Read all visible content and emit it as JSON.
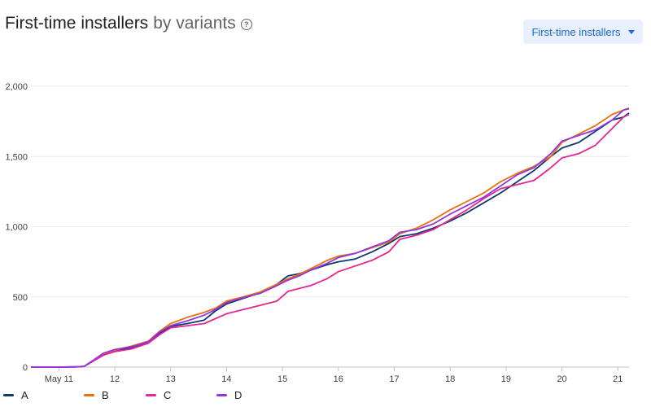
{
  "header": {
    "title": "First-time installers",
    "subtitle": "by variants",
    "help_icon": "help-circle-icon"
  },
  "metric_selector": {
    "label": "First-time installers",
    "icon": "dropdown-caret-icon"
  },
  "chart_data": {
    "type": "line",
    "title": "First-time installers by variants",
    "xlabel": "",
    "ylabel": "",
    "x_range": [
      10.5,
      21.2
    ],
    "x_ticks": [
      {
        "value": 11,
        "label": "May 11"
      },
      {
        "value": 12,
        "label": "12"
      },
      {
        "value": 13,
        "label": "13"
      },
      {
        "value": 14,
        "label": "14"
      },
      {
        "value": 15,
        "label": "15"
      },
      {
        "value": 16,
        "label": "16"
      },
      {
        "value": 17,
        "label": "17"
      },
      {
        "value": 18,
        "label": "18"
      },
      {
        "value": 19,
        "label": "19"
      },
      {
        "value": 20,
        "label": "20"
      },
      {
        "value": 21,
        "label": "21"
      }
    ],
    "ylim": [
      0,
      2000
    ],
    "y_ticks": [
      {
        "value": 0,
        "label": "0"
      },
      {
        "value": 500,
        "label": "500"
      },
      {
        "value": 1000,
        "label": "1,000"
      },
      {
        "value": 1500,
        "label": "1,500"
      },
      {
        "value": 2000,
        "label": "2,000"
      }
    ],
    "grid": true,
    "legend_position": "bottom-left",
    "series": [
      {
        "name": "A",
        "color": "#0d3a6e",
        "points": [
          [
            10.5,
            0
          ],
          [
            11.0,
            0
          ],
          [
            11.3,
            2
          ],
          [
            11.45,
            5
          ],
          [
            11.6,
            40
          ],
          [
            11.8,
            90
          ],
          [
            12.0,
            115
          ],
          [
            12.3,
            140
          ],
          [
            12.6,
            175
          ],
          [
            12.8,
            240
          ],
          [
            13.0,
            290
          ],
          [
            13.3,
            310
          ],
          [
            13.6,
            335
          ],
          [
            13.8,
            400
          ],
          [
            14.0,
            450
          ],
          [
            14.3,
            490
          ],
          [
            14.6,
            530
          ],
          [
            14.9,
            590
          ],
          [
            15.1,
            650
          ],
          [
            15.3,
            665
          ],
          [
            15.5,
            690
          ],
          [
            15.8,
            730
          ],
          [
            16.0,
            750
          ],
          [
            16.3,
            770
          ],
          [
            16.6,
            820
          ],
          [
            16.9,
            880
          ],
          [
            17.1,
            930
          ],
          [
            17.4,
            950
          ],
          [
            17.7,
            990
          ],
          [
            18.0,
            1040
          ],
          [
            18.3,
            1100
          ],
          [
            18.6,
            1170
          ],
          [
            18.9,
            1240
          ],
          [
            19.2,
            1320
          ],
          [
            19.5,
            1400
          ],
          [
            19.8,
            1500
          ],
          [
            20.0,
            1560
          ],
          [
            20.3,
            1600
          ],
          [
            20.6,
            1680
          ],
          [
            20.9,
            1760
          ],
          [
            21.1,
            1780
          ],
          [
            21.2,
            1810
          ]
        ]
      },
      {
        "name": "B",
        "color": "#e8710a",
        "points": [
          [
            10.5,
            0
          ],
          [
            11.0,
            0
          ],
          [
            11.3,
            2
          ],
          [
            11.45,
            5
          ],
          [
            11.6,
            40
          ],
          [
            11.8,
            95
          ],
          [
            12.0,
            120
          ],
          [
            12.3,
            150
          ],
          [
            12.6,
            185
          ],
          [
            12.8,
            255
          ],
          [
            13.0,
            310
          ],
          [
            13.3,
            355
          ],
          [
            13.6,
            390
          ],
          [
            13.8,
            420
          ],
          [
            14.0,
            470
          ],
          [
            14.3,
            500
          ],
          [
            14.6,
            535
          ],
          [
            14.9,
            590
          ],
          [
            15.1,
            630
          ],
          [
            15.3,
            660
          ],
          [
            15.5,
            700
          ],
          [
            15.8,
            760
          ],
          [
            16.0,
            790
          ],
          [
            16.3,
            810
          ],
          [
            16.6,
            850
          ],
          [
            16.9,
            890
          ],
          [
            17.1,
            950
          ],
          [
            17.4,
            990
          ],
          [
            17.7,
            1050
          ],
          [
            18.0,
            1120
          ],
          [
            18.3,
            1180
          ],
          [
            18.6,
            1240
          ],
          [
            18.9,
            1320
          ],
          [
            19.2,
            1380
          ],
          [
            19.5,
            1430
          ],
          [
            19.8,
            1500
          ],
          [
            20.0,
            1600
          ],
          [
            20.3,
            1660
          ],
          [
            20.6,
            1720
          ],
          [
            20.9,
            1800
          ],
          [
            21.1,
            1830
          ],
          [
            21.2,
            1845
          ]
        ]
      },
      {
        "name": "C",
        "color": "#e52592",
        "points": [
          [
            10.5,
            0
          ],
          [
            11.0,
            0
          ],
          [
            11.3,
            2
          ],
          [
            11.45,
            5
          ],
          [
            11.6,
            40
          ],
          [
            11.8,
            85
          ],
          [
            12.0,
            110
          ],
          [
            12.3,
            130
          ],
          [
            12.6,
            170
          ],
          [
            12.8,
            230
          ],
          [
            13.0,
            280
          ],
          [
            13.3,
            295
          ],
          [
            13.6,
            310
          ],
          [
            13.8,
            345
          ],
          [
            14.0,
            380
          ],
          [
            14.3,
            410
          ],
          [
            14.6,
            440
          ],
          [
            14.9,
            470
          ],
          [
            15.1,
            540
          ],
          [
            15.3,
            560
          ],
          [
            15.5,
            580
          ],
          [
            15.8,
            630
          ],
          [
            16.0,
            680
          ],
          [
            16.3,
            720
          ],
          [
            16.6,
            760
          ],
          [
            16.9,
            820
          ],
          [
            17.1,
            910
          ],
          [
            17.4,
            940
          ],
          [
            17.7,
            980
          ],
          [
            18.0,
            1050
          ],
          [
            18.3,
            1120
          ],
          [
            18.6,
            1200
          ],
          [
            18.9,
            1270
          ],
          [
            19.2,
            1300
          ],
          [
            19.5,
            1330
          ],
          [
            19.8,
            1420
          ],
          [
            20.0,
            1490
          ],
          [
            20.3,
            1520
          ],
          [
            20.6,
            1580
          ],
          [
            20.9,
            1700
          ],
          [
            21.1,
            1780
          ],
          [
            21.2,
            1800
          ]
        ]
      },
      {
        "name": "D",
        "color": "#9334e6",
        "points": [
          [
            10.5,
            0
          ],
          [
            11.0,
            0
          ],
          [
            11.3,
            2
          ],
          [
            11.45,
            5
          ],
          [
            11.6,
            45
          ],
          [
            11.8,
            100
          ],
          [
            12.0,
            125
          ],
          [
            12.3,
            145
          ],
          [
            12.6,
            180
          ],
          [
            12.8,
            250
          ],
          [
            13.0,
            295
          ],
          [
            13.3,
            330
          ],
          [
            13.6,
            370
          ],
          [
            13.8,
            410
          ],
          [
            14.0,
            460
          ],
          [
            14.3,
            495
          ],
          [
            14.6,
            525
          ],
          [
            14.9,
            580
          ],
          [
            15.1,
            620
          ],
          [
            15.3,
            650
          ],
          [
            15.5,
            690
          ],
          [
            15.8,
            740
          ],
          [
            16.0,
            780
          ],
          [
            16.3,
            810
          ],
          [
            16.6,
            855
          ],
          [
            16.9,
            900
          ],
          [
            17.1,
            960
          ],
          [
            17.4,
            980
          ],
          [
            17.7,
            1020
          ],
          [
            18.0,
            1090
          ],
          [
            18.3,
            1150
          ],
          [
            18.6,
            1210
          ],
          [
            18.9,
            1290
          ],
          [
            19.2,
            1370
          ],
          [
            19.5,
            1420
          ],
          [
            19.8,
            1520
          ],
          [
            20.0,
            1610
          ],
          [
            20.3,
            1650
          ],
          [
            20.6,
            1690
          ],
          [
            20.9,
            1760
          ],
          [
            21.1,
            1830
          ],
          [
            21.2,
            1840
          ]
        ]
      }
    ]
  }
}
